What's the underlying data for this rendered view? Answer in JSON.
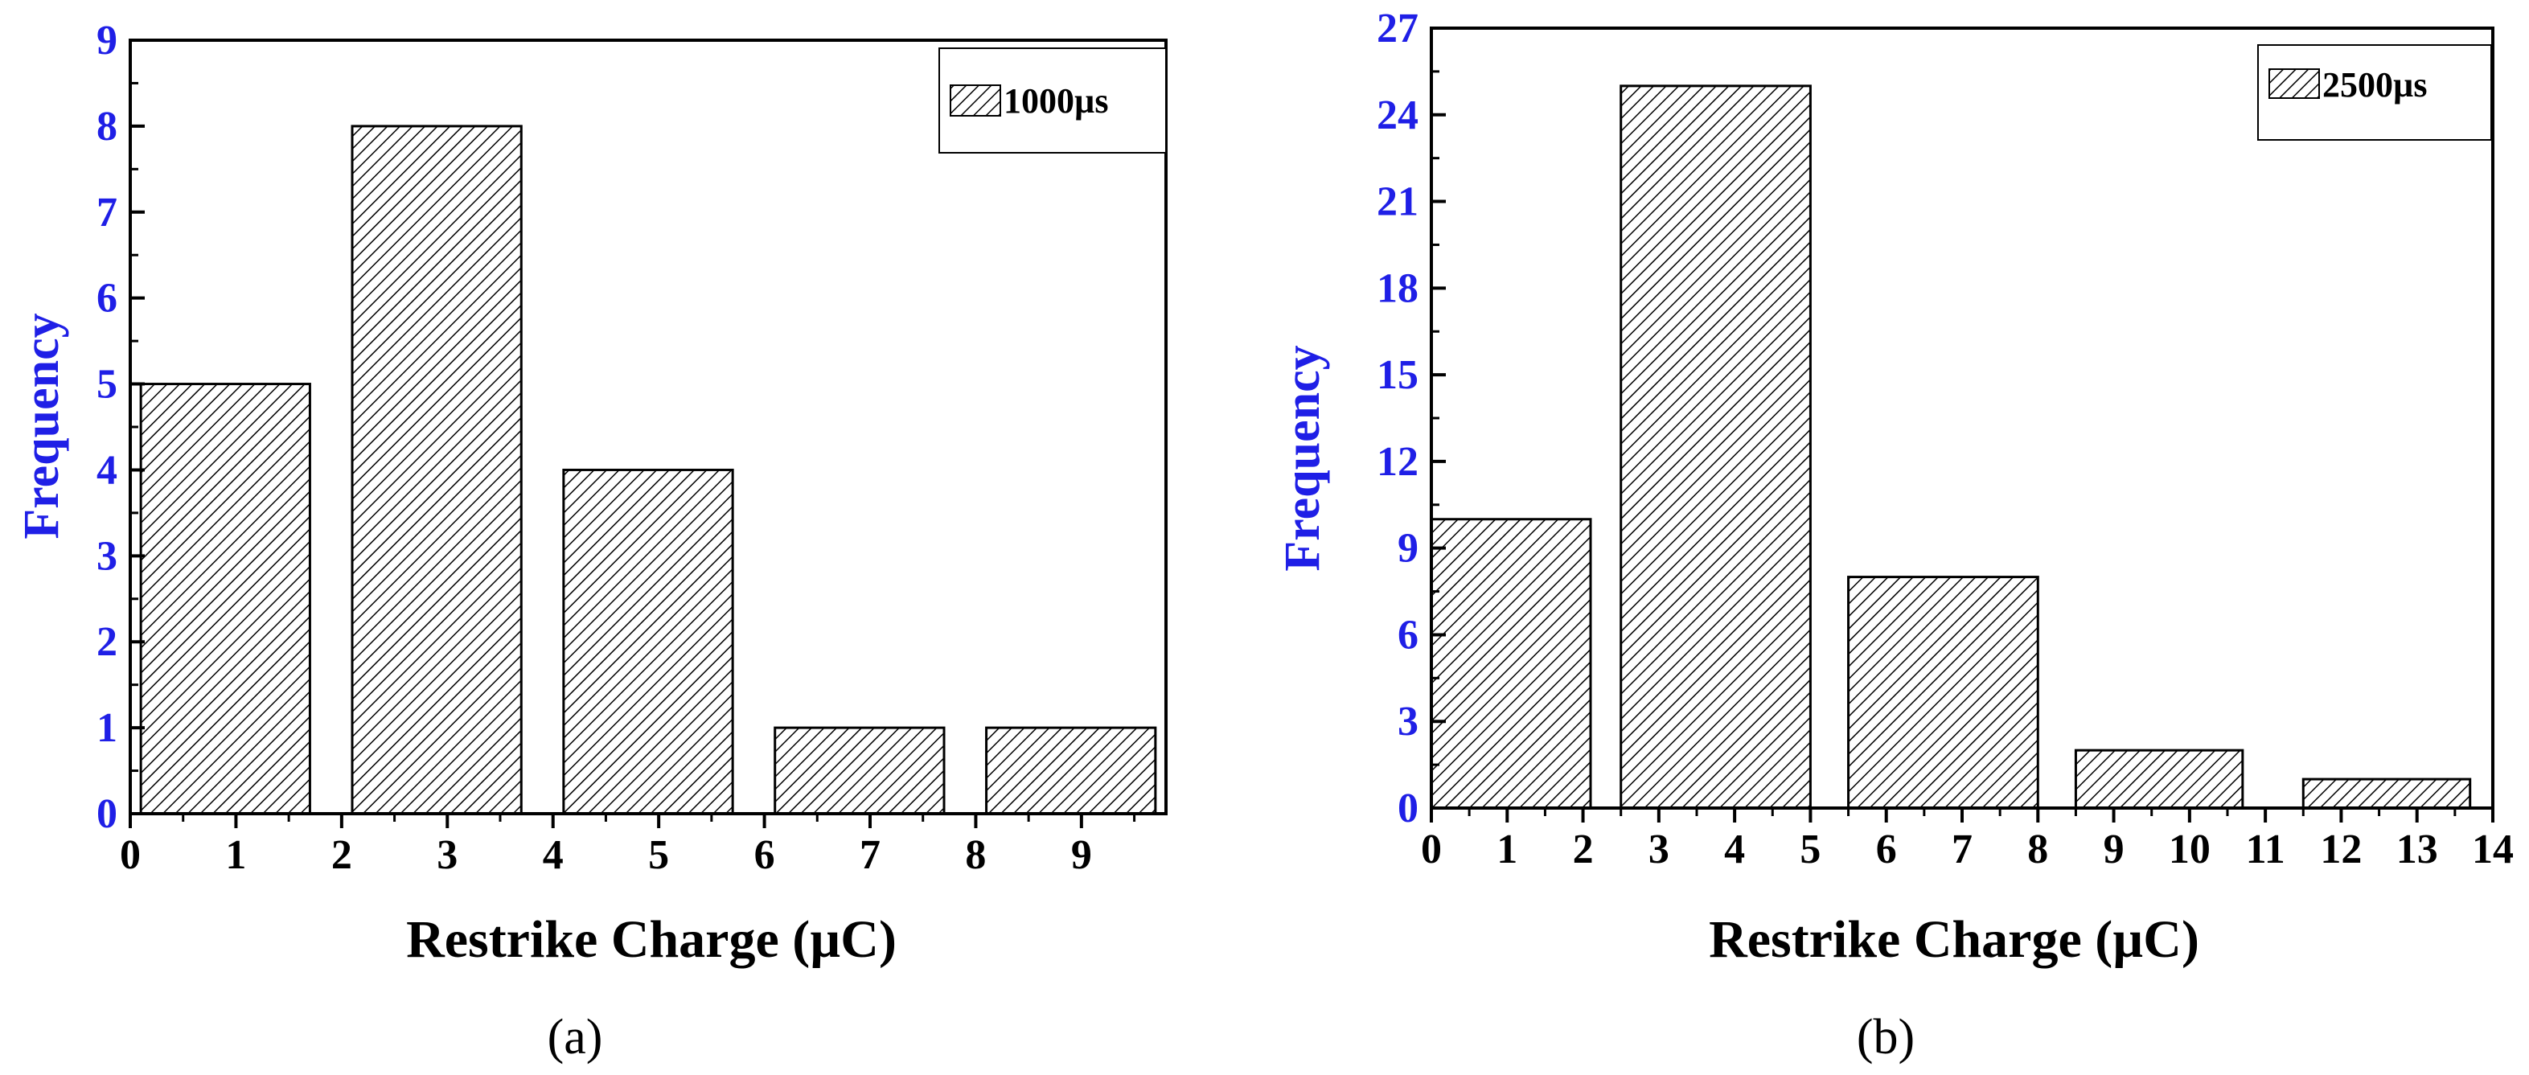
{
  "chart_data": [
    {
      "type": "bar",
      "panel_label": "(a)",
      "legend": "1000µs",
      "xlabel": "Restrike Charge (µC)",
      "ylabel": "Frequency",
      "xlim": [
        0,
        9.8
      ],
      "ylim": [
        0,
        9
      ],
      "xticks": [
        "0",
        "1",
        "2",
        "3",
        "4",
        "5",
        "6",
        "7",
        "8",
        "9"
      ],
      "yticks": [
        "0",
        "1",
        "2",
        "3",
        "4",
        "5",
        "6",
        "7",
        "8",
        "9"
      ],
      "bins": [
        {
          "start": 0.1,
          "end": 1.7,
          "value": 5
        },
        {
          "start": 2.1,
          "end": 3.7,
          "value": 8
        },
        {
          "start": 4.1,
          "end": 5.7,
          "value": 4
        },
        {
          "start": 6.1,
          "end": 7.7,
          "value": 1
        },
        {
          "start": 8.1,
          "end": 9.7,
          "value": 1
        }
      ]
    },
    {
      "type": "bar",
      "panel_label": "(b)",
      "legend": "2500µs",
      "xlabel": "Restrike Charge (µC)",
      "ylabel": "Frequency",
      "xlim": [
        0,
        14
      ],
      "ylim": [
        0,
        27
      ],
      "xticks": [
        "0",
        "1",
        "2",
        "3",
        "4",
        "5",
        "6",
        "7",
        "8",
        "9",
        "10",
        "11",
        "12",
        "13",
        "14"
      ],
      "yticks": [
        "0",
        "3",
        "6",
        "9",
        "12",
        "15",
        "18",
        "21",
        "24",
        "27"
      ],
      "bins": [
        {
          "start": 0.0,
          "end": 2.1,
          "value": 10
        },
        {
          "start": 2.5,
          "end": 5.0,
          "value": 25
        },
        {
          "start": 5.5,
          "end": 8.0,
          "value": 8
        },
        {
          "start": 8.5,
          "end": 10.7,
          "value": 2
        },
        {
          "start": 11.5,
          "end": 13.7,
          "value": 1
        }
      ]
    }
  ]
}
